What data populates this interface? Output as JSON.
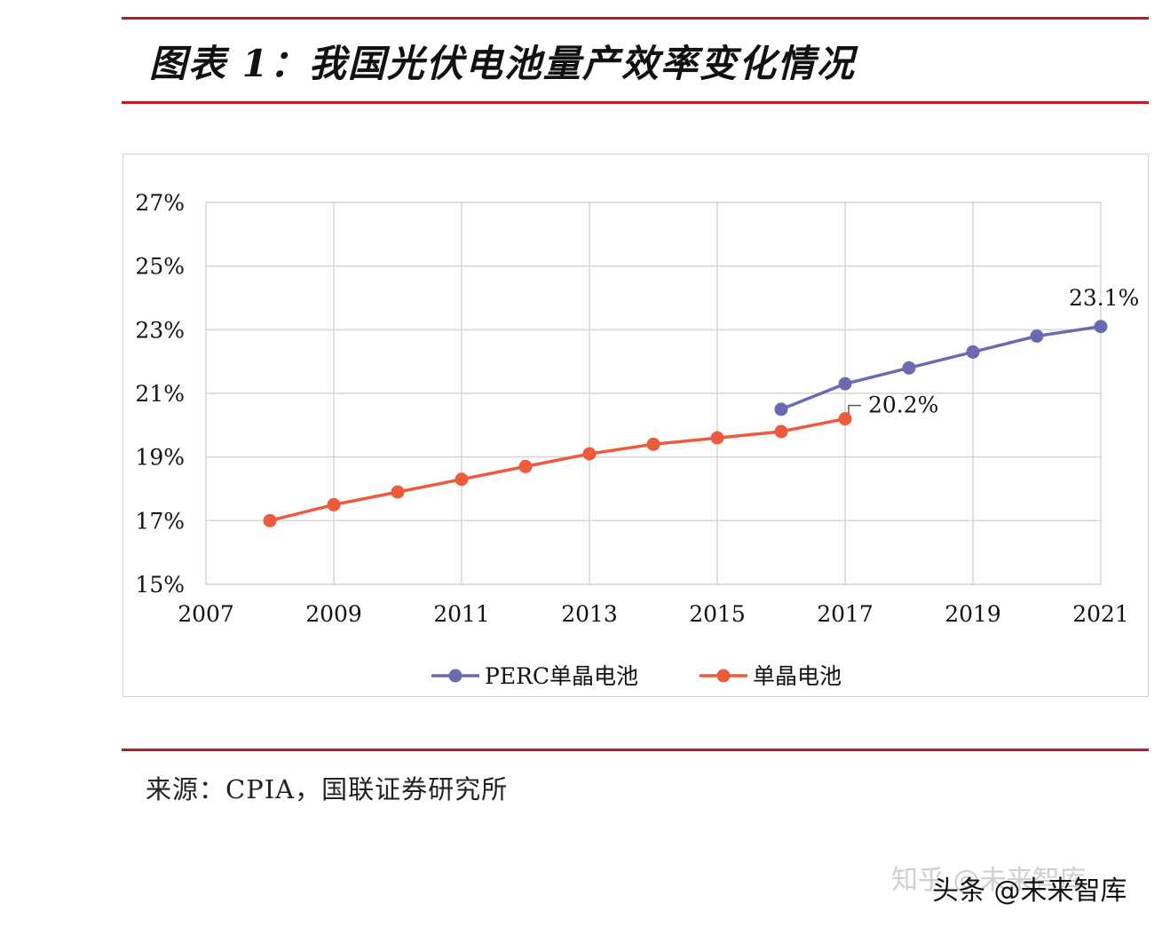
{
  "figure_title": "图表 1：我国光伏电池量产效率变化情况",
  "source_note": "来源：CPIA，国联证券研究所",
  "watermark_ghost": "知乎 @未来智库",
  "watermark": "头条 @未来智库",
  "colors": {
    "rule": "#c0191f",
    "perc": "#6a6ab0",
    "mono": "#ee5a3c",
    "grid": "#d4d4d4"
  },
  "chart_data": {
    "type": "line",
    "title": "",
    "xlabel": "",
    "ylabel": "",
    "xlim": [
      2007,
      2021
    ],
    "ylim": [
      15,
      27
    ],
    "x_ticks": [
      "2007",
      "2009",
      "2011",
      "2013",
      "2015",
      "2017",
      "2019",
      "2021"
    ],
    "y_ticks": [
      "15%",
      "17%",
      "19%",
      "21%",
      "23%",
      "25%",
      "27%"
    ],
    "grid": true,
    "legend_position": "bottom",
    "series": [
      {
        "name": "PERC单晶电池",
        "color": "#6a6ab0",
        "x": [
          2016,
          2017,
          2018,
          2019,
          2020,
          2021
        ],
        "y": [
          20.5,
          21.3,
          21.8,
          22.3,
          22.8,
          23.1
        ]
      },
      {
        "name": "单晶电池",
        "color": "#ee5a3c",
        "x": [
          2008,
          2009,
          2010,
          2011,
          2012,
          2013,
          2014,
          2015,
          2016,
          2017
        ],
        "y": [
          17.0,
          17.5,
          17.9,
          18.3,
          18.7,
          19.1,
          19.4,
          19.6,
          19.8,
          20.2
        ]
      }
    ],
    "annotations": [
      {
        "text": "23.1%",
        "series": 0,
        "x": 2021,
        "y": 23.1
      },
      {
        "text": "20.2%",
        "series": 1,
        "x": 2017,
        "y": 20.2
      }
    ]
  }
}
